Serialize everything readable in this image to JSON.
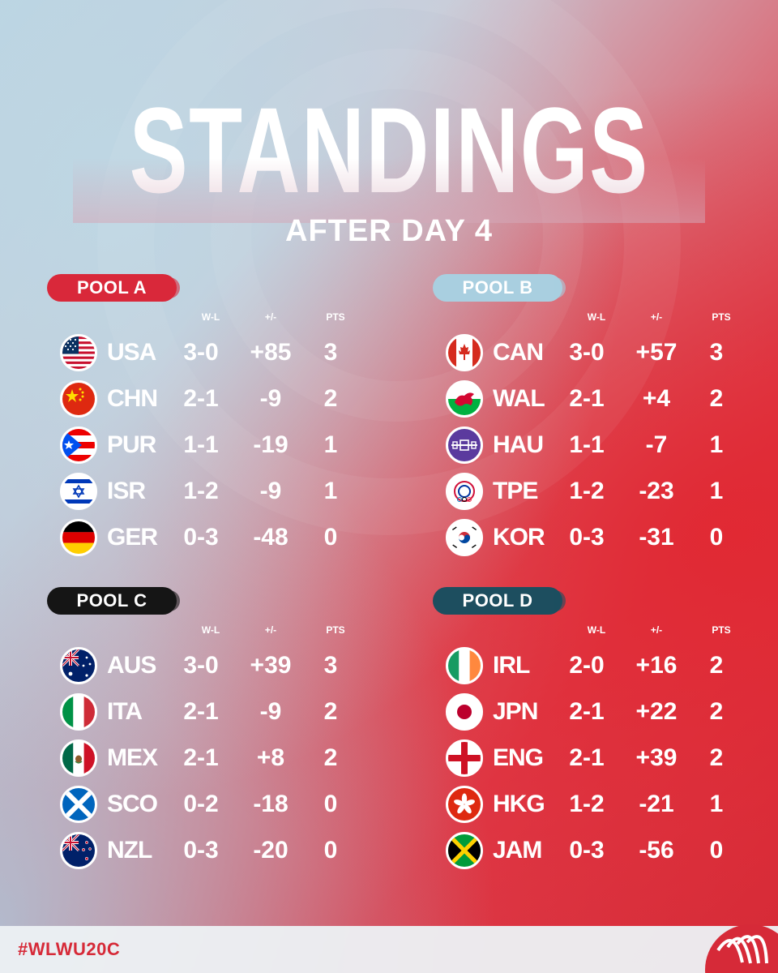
{
  "title": "STANDINGS",
  "subtitle": "AFTER DAY 4",
  "hashtag": "#WLWU20C",
  "columns": {
    "wl": "W-L",
    "pm": "+/-",
    "pts": "PTS"
  },
  "colors": {
    "pool_a": "#d9283a",
    "pool_b": "#a9cfe0",
    "pool_c": "#151515",
    "pool_d": "#1d4e5f",
    "brand_red": "#d62a38"
  },
  "pools": [
    {
      "label": "POOL A",
      "badge_color": "#d9283a",
      "badge_text_color": "#ffffff",
      "teams": [
        {
          "code": "USA",
          "flag": "usa-flag-icon",
          "wl": "3-0",
          "pm": "+85",
          "pts": "3"
        },
        {
          "code": "CHN",
          "flag": "china-flag-icon",
          "wl": "2-1",
          "pm": "-9",
          "pts": "2"
        },
        {
          "code": "PUR",
          "flag": "puerto-rico-flag-icon",
          "wl": "1-1",
          "pm": "-19",
          "pts": "1"
        },
        {
          "code": "ISR",
          "flag": "israel-flag-icon",
          "wl": "1-2",
          "pm": "-9",
          "pts": "1"
        },
        {
          "code": "GER",
          "flag": "germany-flag-icon",
          "wl": "0-3",
          "pm": "-48",
          "pts": "0"
        }
      ]
    },
    {
      "label": "POOL B",
      "badge_color": "#a9cfe0",
      "badge_text_color": "#ffffff",
      "teams": [
        {
          "code": "CAN",
          "flag": "canada-flag-icon",
          "wl": "3-0",
          "pm": "+57",
          "pts": "3"
        },
        {
          "code": "WAL",
          "flag": "wales-flag-icon",
          "wl": "2-1",
          "pm": "+4",
          "pts": "2"
        },
        {
          "code": "HAU",
          "flag": "haudenosaunee-flag-icon",
          "wl": "1-1",
          "pm": "-7",
          "pts": "1"
        },
        {
          "code": "TPE",
          "flag": "chinese-taipei-flag-icon",
          "wl": "1-2",
          "pm": "-23",
          "pts": "1"
        },
        {
          "code": "KOR",
          "flag": "korea-flag-icon",
          "wl": "0-3",
          "pm": "-31",
          "pts": "0"
        }
      ]
    },
    {
      "label": "POOL C",
      "badge_color": "#151515",
      "badge_text_color": "#ffffff",
      "teams": [
        {
          "code": "AUS",
          "flag": "australia-flag-icon",
          "wl": "3-0",
          "pm": "+39",
          "pts": "3"
        },
        {
          "code": "ITA",
          "flag": "italy-flag-icon",
          "wl": "2-1",
          "pm": "-9",
          "pts": "2"
        },
        {
          "code": "MEX",
          "flag": "mexico-flag-icon",
          "wl": "2-1",
          "pm": "+8",
          "pts": "2"
        },
        {
          "code": "SCO",
          "flag": "scotland-flag-icon",
          "wl": "0-2",
          "pm": "-18",
          "pts": "0"
        },
        {
          "code": "NZL",
          "flag": "new-zealand-flag-icon",
          "wl": "0-3",
          "pm": "-20",
          "pts": "0"
        }
      ]
    },
    {
      "label": "POOL D",
      "badge_color": "#1d4e5f",
      "badge_text_color": "#ffffff",
      "teams": [
        {
          "code": "IRL",
          "flag": "ireland-flag-icon",
          "wl": "2-0",
          "pm": "+16",
          "pts": "2"
        },
        {
          "code": "JPN",
          "flag": "japan-flag-icon",
          "wl": "2-1",
          "pm": "+22",
          "pts": "2"
        },
        {
          "code": "ENG",
          "flag": "england-flag-icon",
          "wl": "2-1",
          "pm": "+39",
          "pts": "2"
        },
        {
          "code": "HKG",
          "flag": "hong-kong-flag-icon",
          "wl": "1-2",
          "pm": "-21",
          "pts": "1"
        },
        {
          "code": "JAM",
          "flag": "jamaica-flag-icon",
          "wl": "0-3",
          "pm": "-56",
          "pts": "0"
        }
      ]
    }
  ]
}
